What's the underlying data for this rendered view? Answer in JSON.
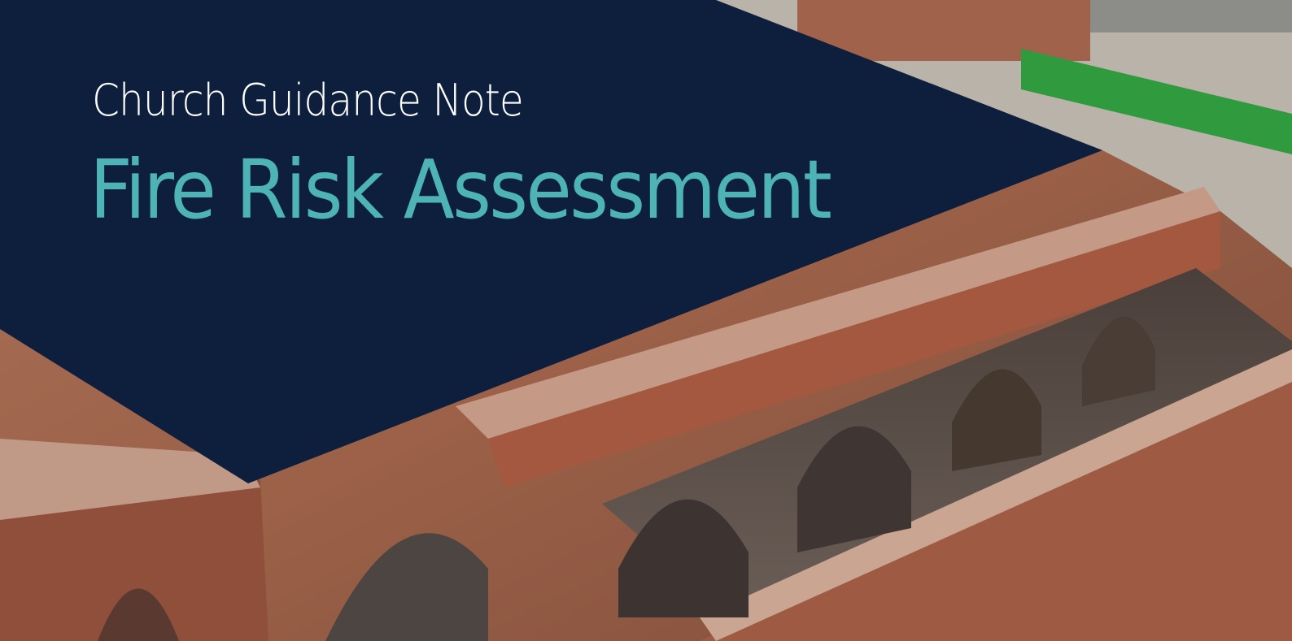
{
  "header": {
    "subtitle": "Church Guidance Note",
    "title": "Fire Risk Assessment"
  }
}
